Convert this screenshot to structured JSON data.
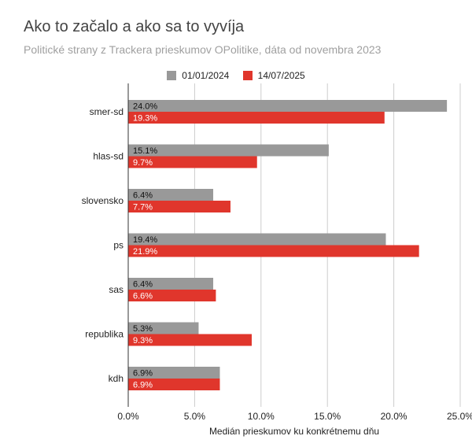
{
  "chart_data": {
    "type": "bar",
    "orientation": "horizontal",
    "title": "Ako to začalo a ako sa to vyvíja",
    "subtitle": "Politické strany z Trackera prieskumov OPolitike, dáta od novembra 2023",
    "xlabel": "Medián prieskumov ku konkrétnemu dňu",
    "ylabel": "",
    "xlim": [
      0,
      25
    ],
    "xticks": [
      0,
      5,
      10,
      15,
      20,
      25
    ],
    "xtick_labels": [
      "0.0%",
      "5.0%",
      "10.0%",
      "15.0%",
      "20.0%",
      "25.0%"
    ],
    "grid": true,
    "legend_position": "top",
    "categories": [
      "smer-sd",
      "hlas-sd",
      "slovensko",
      "ps",
      "sas",
      "republika",
      "kdh"
    ],
    "series": [
      {
        "name": "01/01/2024",
        "color": "#999999",
        "values": [
          24.0,
          15.1,
          6.4,
          19.4,
          6.4,
          5.3,
          6.9
        ],
        "labels": [
          "24.0%",
          "15.1%",
          "6.4%",
          "19.4%",
          "6.4%",
          "5.3%",
          "6.9%"
        ]
      },
      {
        "name": "14/07/2025",
        "color": "#e0362c",
        "values": [
          19.3,
          9.7,
          7.7,
          21.9,
          6.6,
          9.3,
          6.9
        ],
        "labels": [
          "19.3%",
          "9.7%",
          "7.7%",
          "21.9%",
          "6.6%",
          "9.3%",
          "6.9%"
        ]
      }
    ]
  }
}
